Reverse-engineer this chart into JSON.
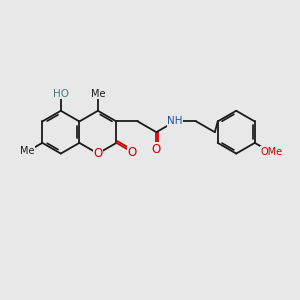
{
  "bg_color": "#e8e8e8",
  "bond_color": "#1a1a1a",
  "oxygen_color": "#cc0000",
  "nitrogen_color": "#2255aa",
  "hydroxyl_color": "#4a7c7a",
  "font_size": 7.5,
  "lw": 1.3,
  "xlim": [
    0,
    10
  ],
  "ylim": [
    0,
    10
  ]
}
